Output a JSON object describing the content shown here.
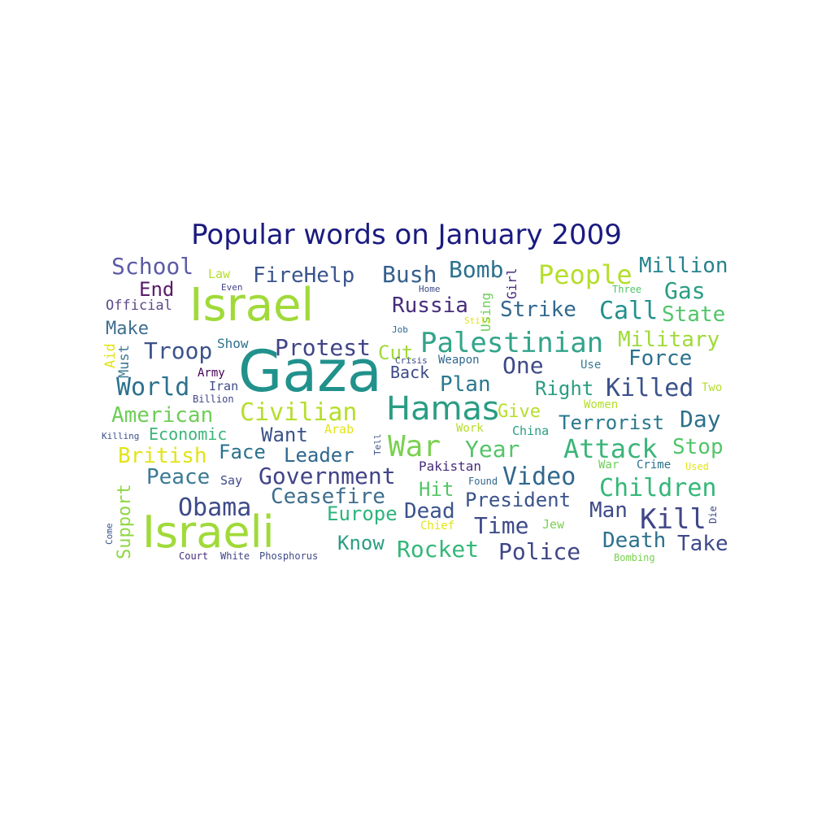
{
  "chart_data": {
    "type": "wordcloud",
    "title": "Popular words on January 2009",
    "title_color": "#1a1a80",
    "colormap": "viridis",
    "words": [
      {
        "text": "Gaza",
        "color": "#21918c"
      },
      {
        "text": "Israel",
        "color": "#a0da39"
      },
      {
        "text": "Israeli",
        "color": "#a0da39"
      },
      {
        "text": "Hamas",
        "color": "#2a9d83"
      },
      {
        "text": "Palestinian",
        "color": "#33a48a"
      },
      {
        "text": "Civilian",
        "color": "#b5de2b"
      },
      {
        "text": "War",
        "color": "#7ad151"
      },
      {
        "text": "Attack",
        "color": "#3bb57a"
      },
      {
        "text": "Government",
        "color": "#414487"
      },
      {
        "text": "Children",
        "color": "#35b779"
      },
      {
        "text": "Video",
        "color": "#31688e"
      },
      {
        "text": "Killed",
        "color": "#3b528b"
      },
      {
        "text": "People",
        "color": "#b5de2b"
      },
      {
        "text": "Obama",
        "color": "#3e4a89"
      },
      {
        "text": "Protest",
        "color": "#414487"
      },
      {
        "text": "Kill",
        "color": "#404688"
      },
      {
        "text": "Police",
        "color": "#3f4788"
      },
      {
        "text": "Rocket",
        "color": "#35b779"
      },
      {
        "text": "Ceasefire",
        "color": "#3e6e8e"
      },
      {
        "text": "American",
        "color": "#6ece58"
      },
      {
        "text": "World",
        "color": "#2c718e"
      },
      {
        "text": "Troop",
        "color": "#3b528b"
      },
      {
        "text": "Russia",
        "color": "#472d7b"
      },
      {
        "text": "Strike",
        "color": "#31688e"
      },
      {
        "text": "Call",
        "color": "#21918c"
      },
      {
        "text": "Gas",
        "color": "#2a9d83"
      },
      {
        "text": "Million",
        "color": "#26828e"
      },
      {
        "text": "Bush",
        "color": "#355f8d"
      },
      {
        "text": "Bomb",
        "color": "#2c718e"
      },
      {
        "text": "FireHelp",
        "color": "#3a548c"
      },
      {
        "text": "School",
        "color": "#5c5ba5"
      },
      {
        "text": "Military",
        "color": "#a0da39"
      },
      {
        "text": "State",
        "color": "#52c569"
      },
      {
        "text": "Force",
        "color": "#2c718e"
      },
      {
        "text": "Day",
        "color": "#2d708e"
      },
      {
        "text": "Terrorist",
        "color": "#2a788e"
      },
      {
        "text": "Right",
        "color": "#2a9d83"
      },
      {
        "text": "One",
        "color": "#3e4a89"
      },
      {
        "text": "Plan",
        "color": "#2a788e"
      },
      {
        "text": "Year",
        "color": "#52c569"
      },
      {
        "text": "Leader",
        "color": "#31688e"
      },
      {
        "text": "Want",
        "color": "#3b528b"
      },
      {
        "text": "Face",
        "color": "#2c718e"
      },
      {
        "text": "British",
        "color": "#e2e418"
      },
      {
        "text": "Peace",
        "color": "#3a7a94"
      },
      {
        "text": "Support",
        "color": "#8fd744"
      },
      {
        "text": "Europe",
        "color": "#2eb37c"
      },
      {
        "text": "Dead",
        "color": "#3a548c"
      },
      {
        "text": "President",
        "color": "#3b528b"
      },
      {
        "text": "Hit",
        "color": "#55c667"
      },
      {
        "text": "Time",
        "color": "#3e4a89"
      },
      {
        "text": "Know",
        "color": "#2a9d83"
      },
      {
        "text": "Man",
        "color": "#3e4a89"
      },
      {
        "text": "Death",
        "color": "#2c718e"
      },
      {
        "text": "Take",
        "color": "#3e4a89"
      },
      {
        "text": "Stop",
        "color": "#52c569"
      },
      {
        "text": "Cut",
        "color": "#a0da39"
      },
      {
        "text": "Back",
        "color": "#3e4a89"
      },
      {
        "text": "Give",
        "color": "#b5de2b"
      },
      {
        "text": "End",
        "color": "#5a1a6a"
      },
      {
        "text": "Make",
        "color": "#3e6e8e"
      },
      {
        "text": "Official",
        "color": "#5c4a8a"
      },
      {
        "text": "Economic",
        "color": "#3bb57a"
      },
      {
        "text": "Pakistan",
        "color": "#472d7b"
      },
      {
        "text": "Jew",
        "color": "#7ad151"
      },
      {
        "text": "Crime",
        "color": "#2c718e"
      },
      {
        "text": "War",
        "color": "#6ece58"
      },
      {
        "text": "Used",
        "color": "#e2e418"
      },
      {
        "text": "Women",
        "color": "#b5de2b"
      },
      {
        "text": "Two",
        "color": "#b5de2b"
      },
      {
        "text": "Use",
        "color": "#3a7a94"
      },
      {
        "text": "China",
        "color": "#2a9d83"
      },
      {
        "text": "Work",
        "color": "#b5de2b"
      },
      {
        "text": "Arab",
        "color": "#e2e418"
      },
      {
        "text": "Chief",
        "color": "#e2e418"
      },
      {
        "text": "Found",
        "color": "#31688e"
      },
      {
        "text": "Say",
        "color": "#3e4a89"
      },
      {
        "text": "Show",
        "color": "#2c718e"
      },
      {
        "text": "Army",
        "color": "#440154"
      },
      {
        "text": "Iran",
        "color": "#3e4a89"
      },
      {
        "text": "Billion",
        "color": "#414487"
      },
      {
        "text": "Killing",
        "color": "#3b528b"
      },
      {
        "text": "Law",
        "color": "#b5de2b"
      },
      {
        "text": "Even",
        "color": "#414487"
      },
      {
        "text": "Home",
        "color": "#3e4a89"
      },
      {
        "text": "Job",
        "color": "#31688e"
      },
      {
        "text": "Still",
        "color": "#e2e418"
      },
      {
        "text": "Weapon",
        "color": "#31688e"
      },
      {
        "text": "Crisis",
        "color": "#3e4a89"
      },
      {
        "text": "Three",
        "color": "#52c569"
      },
      {
        "text": "Court",
        "color": "#472d7b"
      },
      {
        "text": "White",
        "color": "#414487"
      },
      {
        "text": "Phosphorus",
        "color": "#3e4a89"
      },
      {
        "text": "Bombing",
        "color": "#7ad151"
      },
      {
        "text": "Aid",
        "color": "#e2e418"
      },
      {
        "text": "Must",
        "color": "#3a7a94"
      },
      {
        "text": "Girl",
        "color": "#472d7b"
      },
      {
        "text": "Using",
        "color": "#6ece58"
      },
      {
        "text": "Tell",
        "color": "#3b528b"
      },
      {
        "text": "Die",
        "color": "#3e4a89"
      },
      {
        "text": "Come",
        "color": "#3b528b"
      }
    ]
  }
}
